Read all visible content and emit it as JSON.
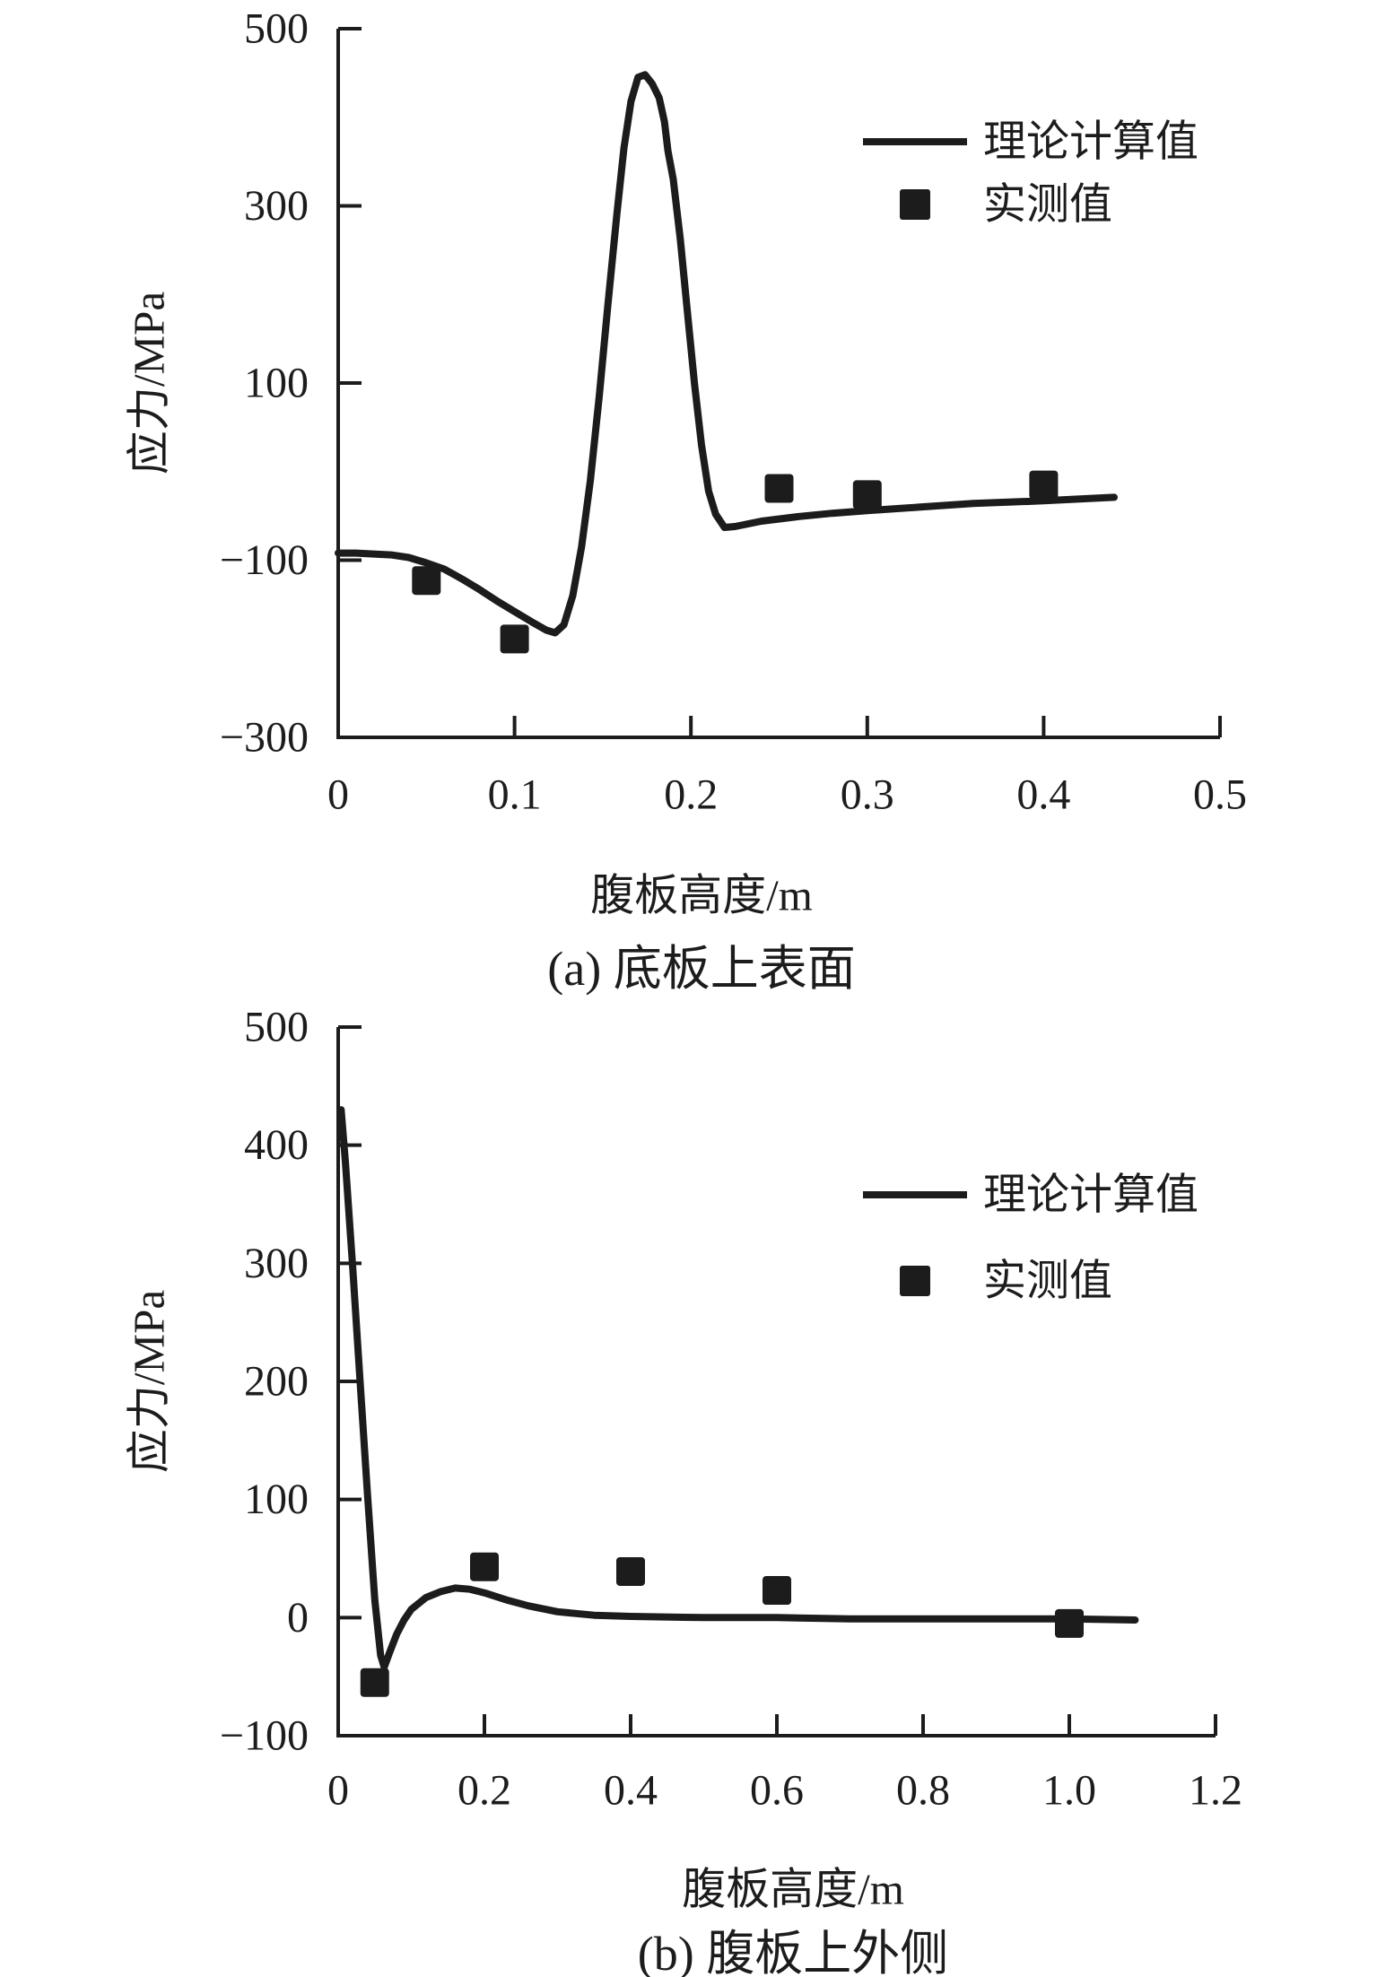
{
  "figure": {
    "background": "#ffffff",
    "ink_color": "#1c1c1c"
  },
  "chart_data": [
    {
      "id": "a",
      "type": "line",
      "caption": "(a) 底板上表面",
      "xlabel": "腹板高度/m",
      "ylabel": "应力/MPa",
      "xlim": [
        0,
        0.5
      ],
      "ylim": [
        -300,
        500
      ],
      "grid": false,
      "legend_position": "upper-right-inside",
      "x_ticks": [
        0,
        0.1,
        0.2,
        0.3,
        0.4,
        0.5
      ],
      "x_tick_labels": [
        "0",
        "0.1",
        "0.2",
        "0.3",
        "0.4",
        "0.5"
      ],
      "y_ticks": [
        500,
        300,
        100,
        -100,
        -300
      ],
      "y_tick_labels": [
        "500",
        "300",
        "100",
        "−100",
        "−300"
      ],
      "legend": [
        {
          "sample": "line",
          "label": "理论计算值"
        },
        {
          "sample": "square",
          "label": "实测值"
        }
      ],
      "series": [
        {
          "name": "理论计算值",
          "kind": "line",
          "points": [
            [
              0,
              -92
            ],
            [
              0.01,
              -92
            ],
            [
              0.02,
              -93
            ],
            [
              0.03,
              -94
            ],
            [
              0.04,
              -97
            ],
            [
              0.05,
              -103
            ],
            [
              0.06,
              -110
            ],
            [
              0.07,
              -121
            ],
            [
              0.08,
              -133
            ],
            [
              0.09,
              -146
            ],
            [
              0.1,
              -158
            ],
            [
              0.11,
              -170
            ],
            [
              0.118,
              -179
            ],
            [
              0.123,
              -182
            ],
            [
              0.128,
              -173
            ],
            [
              0.133,
              -140
            ],
            [
              0.138,
              -85
            ],
            [
              0.143,
              -10
            ],
            [
              0.148,
              85
            ],
            [
              0.153,
              190
            ],
            [
              0.158,
              290
            ],
            [
              0.162,
              365
            ],
            [
              0.166,
              418
            ],
            [
              0.17,
              445
            ],
            [
              0.174,
              448
            ],
            [
              0.178,
              438
            ],
            [
              0.182,
              422
            ],
            [
              0.185,
              395
            ],
            [
              0.187,
              362
            ],
            [
              0.19,
              330
            ],
            [
              0.194,
              262
            ],
            [
              0.198,
              180
            ],
            [
              0.202,
              100
            ],
            [
              0.206,
              30
            ],
            [
              0.21,
              -22
            ],
            [
              0.214,
              -48
            ],
            [
              0.219,
              -63
            ],
            [
              0.225,
              -62
            ],
            [
              0.24,
              -56
            ],
            [
              0.26,
              -51
            ],
            [
              0.28,
              -47
            ],
            [
              0.3,
              -44
            ],
            [
              0.33,
              -40
            ],
            [
              0.36,
              -36
            ],
            [
              0.4,
              -33
            ],
            [
              0.44,
              -29
            ]
          ]
        },
        {
          "name": "实测值",
          "kind": "scatter",
          "points": [
            [
              0.05,
              -123
            ],
            [
              0.1,
              -189
            ],
            [
              0.25,
              -19
            ],
            [
              0.3,
              -26
            ],
            [
              0.4,
              -15
            ]
          ]
        }
      ]
    },
    {
      "id": "b",
      "type": "line",
      "caption": "(b) 腹板上外侧",
      "xlabel": "腹板高度/m",
      "ylabel": "应力/MPa",
      "xlim": [
        0,
        1.2
      ],
      "ylim": [
        -100,
        500
      ],
      "grid": false,
      "legend_position": "upper-right-inside",
      "x_ticks": [
        0,
        0.2,
        0.4,
        0.6,
        0.8,
        1.0,
        1.2
      ],
      "x_tick_labels": [
        "0",
        "0.2",
        "0.4",
        "0.6",
        "0.8",
        "1.0",
        "1.2"
      ],
      "y_ticks": [
        500,
        400,
        300,
        200,
        100,
        0,
        -100
      ],
      "y_tick_labels": [
        "500",
        "400",
        "300",
        "200",
        "100",
        "0",
        "−100"
      ],
      "legend": [
        {
          "sample": "line",
          "label": "理论计算值"
        },
        {
          "sample": "square",
          "label": "实测值"
        }
      ],
      "series": [
        {
          "name": "理论计算值",
          "kind": "line",
          "points": [
            [
              0.004,
              430
            ],
            [
              0.01,
              385
            ],
            [
              0.02,
              295
            ],
            [
              0.03,
              200
            ],
            [
              0.04,
              105
            ],
            [
              0.05,
              15
            ],
            [
              0.058,
              -32
            ],
            [
              0.063,
              -42
            ],
            [
              0.07,
              -30
            ],
            [
              0.08,
              -14
            ],
            [
              0.09,
              -2
            ],
            [
              0.1,
              7
            ],
            [
              0.12,
              17
            ],
            [
              0.14,
              22
            ],
            [
              0.16,
              25
            ],
            [
              0.18,
              24
            ],
            [
              0.2,
              21
            ],
            [
              0.23,
              15
            ],
            [
              0.26,
              10
            ],
            [
              0.3,
              5
            ],
            [
              0.35,
              2
            ],
            [
              0.4,
              1
            ],
            [
              0.5,
              0
            ],
            [
              0.6,
              0
            ],
            [
              0.7,
              -1
            ],
            [
              0.85,
              -1
            ],
            [
              1.0,
              -1
            ],
            [
              1.09,
              -2
            ]
          ]
        },
        {
          "name": "实测值",
          "kind": "scatter",
          "points": [
            [
              0.05,
              -55
            ],
            [
              0.2,
              43
            ],
            [
              0.4,
              39
            ],
            [
              0.6,
              23
            ],
            [
              1.0,
              -5
            ]
          ]
        }
      ]
    }
  ]
}
